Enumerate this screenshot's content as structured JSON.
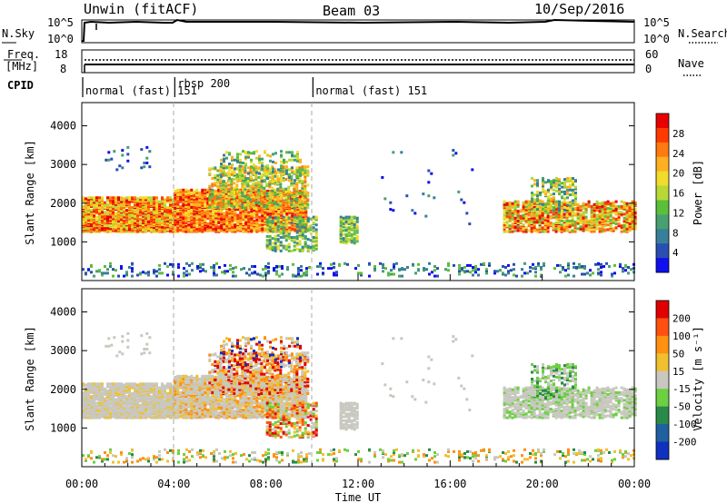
{
  "header": {
    "station": "Unwin (fitACF)",
    "beam": "Beam 03",
    "date": "10/Sep/2016"
  },
  "left_labels": {
    "nsky": "N.Sky",
    "nsky_ticks": [
      "10^5",
      "10^0"
    ],
    "freq": "Freq.",
    "freq_unit": "[MHz]",
    "freq_ticks": [
      "18",
      "8"
    ],
    "cpid": "CPID"
  },
  "right_labels": {
    "nsearch": "N.Search",
    "nsearch_ticks": [
      "10^5",
      "10^0"
    ],
    "nave": "Nave",
    "nave_ticks": [
      "60",
      "0"
    ]
  },
  "cpid_segments": [
    {
      "label": "normal (fast) 151",
      "start_hour": 0.0
    },
    {
      "label": "rbsp 200",
      "start_hour": 4.0
    },
    {
      "label": "normal (fast) 151",
      "start_hour": 10.0
    }
  ],
  "chart_data": [
    {
      "type": "heatmap",
      "title": "",
      "ylabel": "Slant Range [km]",
      "ylim": [
        0,
        4600
      ],
      "yticks": [
        "4000",
        "3000",
        "2000",
        "1000"
      ],
      "xlim": [
        0,
        24
      ],
      "colorbar": {
        "label": "Power [dB]",
        "ticks": [
          "28",
          "24",
          "20",
          "16",
          "12",
          "8",
          "4"
        ],
        "colors": [
          "#1010ee",
          "#2a4fb0",
          "#3a7f9a",
          "#48a070",
          "#5cbf3a",
          "#b8d838",
          "#f0dc2a",
          "#ffb020",
          "#ff7a10",
          "#ff3a00",
          "#e80000"
        ]
      }
    },
    {
      "type": "heatmap",
      "title": "",
      "ylabel": "Slant Range [km]",
      "ylim": [
        0,
        4600
      ],
      "yticks": [
        "4000",
        "3000",
        "2000",
        "1000"
      ],
      "xlim": [
        0,
        24
      ],
      "xlabel": "Time UT",
      "xticks": [
        "00:00",
        "04:00",
        "08:00",
        "12:00",
        "16:00",
        "20:00",
        "00:00"
      ],
      "colorbar": {
        "label": "Velocity [m s⁻¹]",
        "ticks": [
          "200",
          "100",
          "50",
          "15",
          "-15",
          "-50",
          "-100",
          "-200"
        ],
        "colors": [
          "#1030c0",
          "#2060a0",
          "#2a8a4a",
          "#6cd040",
          "#c8c8c0",
          "#f0c030",
          "#ff9010",
          "#ff5010",
          "#e00000"
        ]
      }
    }
  ]
}
